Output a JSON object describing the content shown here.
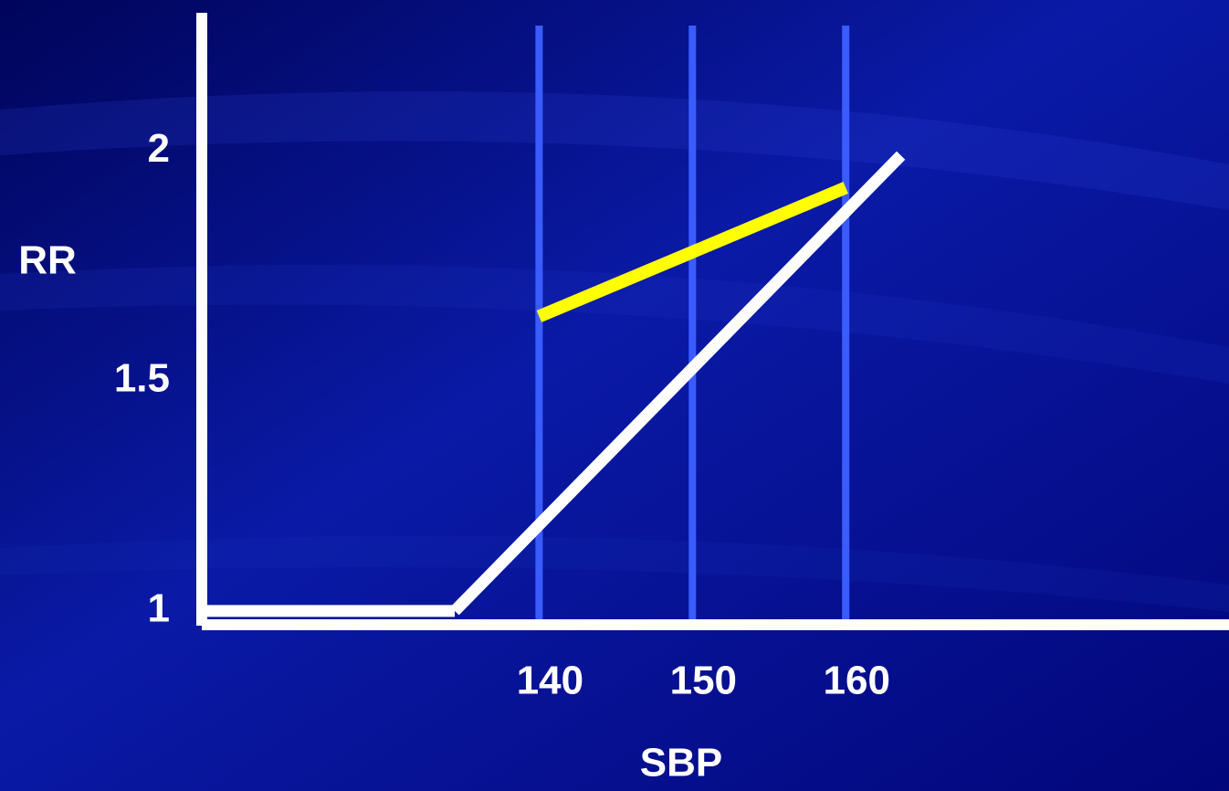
{
  "chart_data": {
    "type": "line",
    "xlabel": "SBP",
    "ylabel": "RR",
    "xlim": [
      118,
      185
    ],
    "ylim": [
      0.97,
      2.3
    ],
    "x_ticks": [
      {
        "value": 140,
        "label": "140"
      },
      {
        "value": 150,
        "label": "150"
      },
      {
        "value": 160,
        "label": "160"
      }
    ],
    "y_ticks": [
      {
        "value": 1,
        "label": "1"
      },
      {
        "value": 1.5,
        "label": "1.5"
      },
      {
        "value": 2,
        "label": "2"
      }
    ],
    "reference_lines_x": [
      140,
      150,
      160
    ],
    "series": [
      {
        "color": "#ffffff",
        "segments": [
          [
            [
              118,
              1.0
            ],
            [
              134.5,
              1.0
            ]
          ],
          [
            [
              134.5,
              1.0
            ],
            [
              163.6,
              1.99
            ]
          ]
        ]
      },
      {
        "color": "#ffff00",
        "segments": [
          [
            [
              140,
              1.64
            ],
            [
              160,
              1.92
            ]
          ]
        ]
      }
    ],
    "colors": {
      "axis": "#ffffff",
      "reference_line": "#3a5cff",
      "background": "#02067f"
    }
  }
}
